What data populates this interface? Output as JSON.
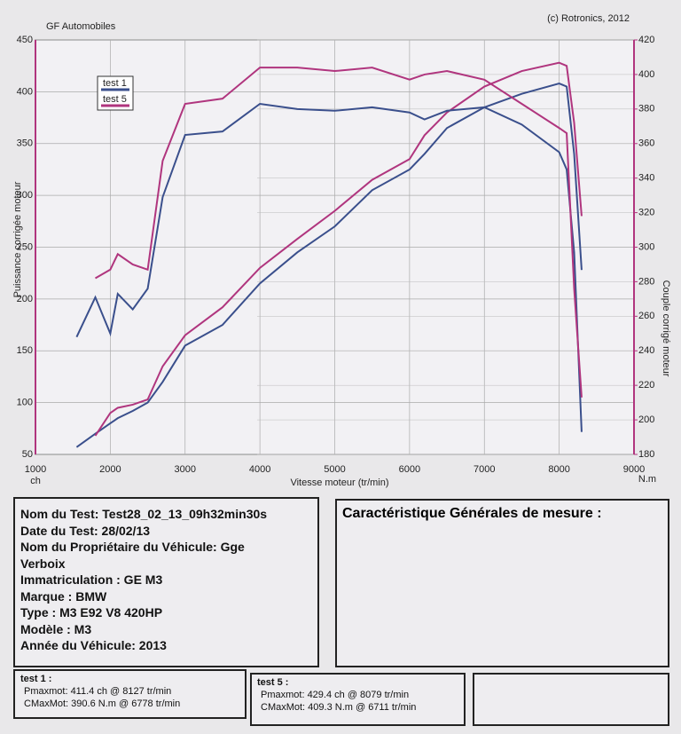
{
  "chart_data": {
    "type": "line",
    "title": "GF Automobiles",
    "copyright": "(c) Rotronics, 2012",
    "x_label": "Vitesse moteur (tr/min)",
    "y_label": "Puissance corrigée moteur",
    "y2_label": "Couple corrigé moteur",
    "y_unit": "ch",
    "y2_unit": "N.m",
    "x": [
      1550,
      1800,
      2000,
      2100,
      2300,
      2500,
      2700,
      3000,
      3500,
      4000,
      4500,
      5000,
      5500,
      6000,
      6200,
      6500,
      7000,
      7500,
      8000,
      8100,
      8200,
      8300
    ],
    "series": [
      {
        "name": "test 1",
        "color": "#3a4f8c",
        "values": [
          57,
          70,
          80,
          85,
          92,
          100,
          120,
          155,
          175,
          215,
          245,
          270,
          305,
          325,
          340,
          365,
          385,
          398,
          408,
          405,
          340,
          228
        ]
      },
      {
        "name": "test 5",
        "color": "#b0357e",
        "values": [
          null,
          68,
          90,
          95,
          98,
          103,
          135,
          165,
          192,
          230,
          258,
          285,
          315,
          335,
          358,
          380,
          405,
          420,
          428,
          425,
          370,
          280
        ]
      },
      {
        "color": "#3a4f8c",
        "axis": "y2",
        "values": [
          248,
          271,
          250,
          273,
          264,
          276,
          329,
          365,
          367,
          383,
          380,
          379,
          381,
          378,
          374,
          379,
          381,
          371,
          355,
          345,
          297,
          193
        ]
      },
      {
        "color": "#b0357e",
        "axis": "y2",
        "values": [
          null,
          282,
          287,
          296,
          290,
          287,
          350,
          383,
          386,
          404,
          404,
          402,
          404,
          397,
          400,
          402,
          397,
          383,
          369,
          366,
          276,
          213
        ]
      }
    ],
    "xlim": [
      1000,
      9000
    ],
    "xticks": [
      1000,
      2000,
      3000,
      4000,
      5000,
      6000,
      7000,
      8000,
      9000
    ],
    "ylim": [
      50,
      450
    ],
    "yticks": [
      50,
      100,
      150,
      200,
      250,
      300,
      350,
      400,
      450
    ],
    "y2lim": [
      180,
      420
    ],
    "y2ticks": [
      180,
      200,
      220,
      240,
      260,
      280,
      300,
      320,
      340,
      360,
      380,
      400,
      420
    ],
    "grid": true
  },
  "info": {
    "lines": [
      "Nom du Test: Test28_02_13_09h32min30s",
      "Date du Test: 28/02/13",
      "Nom du Propriétaire du Véhicule: Gge",
      "Verboix",
      "Immatriculation   : GE M3",
      "Marque  : BMW",
      "Type  : M3 E92 V8 420HP",
      "Modèle  : M3",
      "Année du Véhicule: 2013"
    ]
  },
  "characteristics": {
    "title": "Caractéristique Générales de mesure :"
  },
  "results": [
    {
      "title": "test 1 :",
      "lines": [
        "Pmaxmot: 411.4 ch @ 8127 tr/min",
        "CMaxMot: 390.6 N.m @ 6778 tr/min"
      ]
    },
    {
      "title": "test 5 :",
      "lines": [
        "Pmaxmot: 429.4 ch @ 8079 tr/min",
        "CMaxMot: 409.3 N.m @ 6711 tr/min"
      ]
    }
  ]
}
